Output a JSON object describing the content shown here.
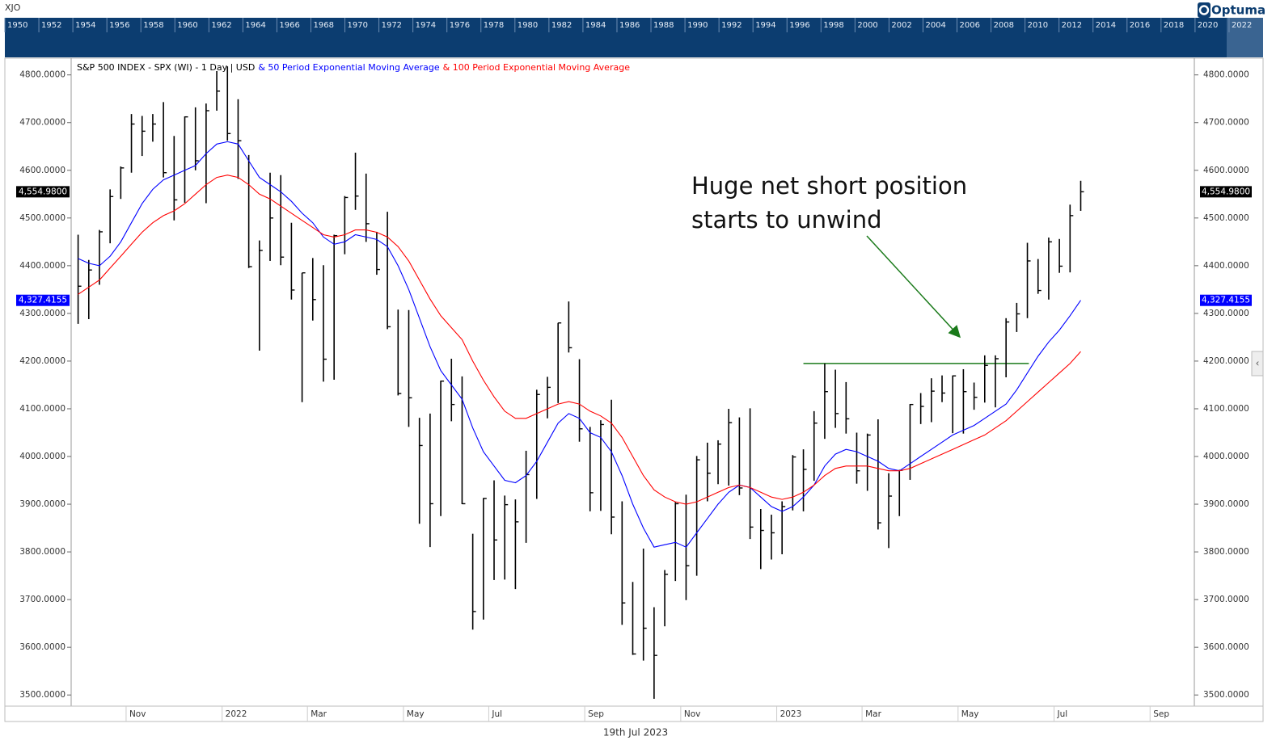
{
  "symbol": "XJO",
  "brand": "Optuma",
  "navigator": {
    "years": [
      1950,
      1952,
      1954,
      1956,
      1958,
      1960,
      1962,
      1964,
      1966,
      1968,
      1970,
      1972,
      1974,
      1976,
      1978,
      1980,
      1982,
      1984,
      1986,
      1988,
      1990,
      1992,
      1994,
      1996,
      1998,
      2000,
      2002,
      2004,
      2006,
      2008,
      2010,
      2012,
      2014,
      2016,
      2018,
      2020,
      2022
    ]
  },
  "chart_data": {
    "type": "ohlc",
    "categories": [
      null,
      null,
      null,
      null,
      null,
      "Nov",
      null,
      null,
      null,
      null,
      null,
      null,
      null,
      null,
      "2022",
      null,
      null,
      null,
      null,
      null,
      null,
      null,
      "Mar",
      null,
      null,
      null,
      null,
      null,
      null,
      null,
      null,
      "May",
      null,
      null,
      null,
      null,
      null,
      null,
      null,
      "Jul",
      null,
      null,
      null,
      null,
      null,
      null,
      null,
      null,
      "Sep",
      null,
      null,
      null,
      null,
      null,
      null,
      null,
      null,
      "Nov",
      null,
      null,
      null,
      null,
      null,
      null,
      null,
      null,
      "2023",
      null,
      null,
      null,
      null,
      null,
      null,
      null,
      "Mar",
      null,
      null,
      null,
      null,
      null,
      null,
      null,
      null,
      "May",
      null,
      null,
      null,
      null,
      null,
      null,
      null,
      null,
      "Jul",
      null,
      null,
      null,
      null,
      null,
      null,
      null,
      null,
      "Sep",
      null,
      null,
      null
    ],
    "series": [
      {
        "name": "S&P 500 INDEX - SPX (WI) - 1 Day | USD",
        "color": "#000000",
        "high": [
          4465,
          4412,
          4475,
          4560,
          4608,
          4718,
          4714,
          4718,
          4743,
          4672,
          4713,
          4732,
          4740,
          4808,
          4818,
          4749,
          4632,
          4453,
          4595,
          4590,
          4490,
          4385,
          4416,
          4401,
          4465,
          4546,
          4637,
          4593,
          4471,
          4513,
          4308,
          4307,
          4081,
          4090,
          4159,
          4205,
          4168,
          3838,
          3913,
          3950,
          3918,
          3910,
          4012,
          4140,
          4167,
          4280,
          4325,
          4204,
          4062,
          4076,
          4119,
          3906,
          3737,
          3807,
          3684,
          3762,
          3905,
          3920,
          4001,
          4029,
          4034,
          4100,
          4082,
          4101,
          3890,
          3878,
          3906,
          4003,
          4015,
          4095,
          4195,
          4182,
          4156,
          4050,
          4048,
          4078,
          3965,
          3972,
          4110,
          4133,
          4164,
          4170,
          4170,
          4183,
          4155,
          4212,
          4212,
          4290,
          4322,
          4448,
          4414,
          4459,
          4456,
          4528,
          4578,
          null,
          null,
          null,
          null,
          null,
          null,
          null,
          null,
          null,
          null
        ],
        "low": [
          4278,
          4288,
          4360,
          4447,
          4540,
          4595,
          4630,
          4660,
          4585,
          4495,
          4532,
          4600,
          4531,
          4725,
          4662,
          4582,
          4395,
          4222,
          4410,
          4401,
          4329,
          4114,
          4285,
          4157,
          4161,
          4424,
          4517,
          4450,
          4381,
          4267,
          4128,
          4062,
          3859,
          3810,
          3875,
          4074,
          3900,
          3637,
          3658,
          3741,
          3742,
          3722,
          3819,
          3911,
          4080,
          4112,
          4218,
          4031,
          3885,
          3886,
          3837,
          3647,
          3584,
          3572,
          3492,
          3644,
          3739,
          3699,
          3750,
          3906,
          3942,
          3939,
          3919,
          3827,
          3764,
          3784,
          3795,
          3887,
          3885,
          3949,
          4037,
          4060,
          4048,
          3943,
          3928,
          3847,
          3808,
          3875,
          3951,
          4068,
          4072,
          4114,
          4049,
          4048,
          4098,
          4113,
          4103,
          4166,
          4261,
          4290,
          4341,
          4329,
          4385,
          4386,
          4515,
          null,
          null,
          null,
          null,
          null,
          null,
          null,
          null,
          null,
          null
        ],
        "close": [
          4357,
          4391,
          4471,
          4545,
          4605,
          4697,
          4682,
          4697,
          4595,
          4538,
          4712,
          4620,
          4725,
          4766,
          4677,
          4662,
          4398,
          4432,
          4500,
          4418,
          4349,
          4385,
          4329,
          4204,
          4463,
          4543,
          4546,
          4488,
          4392,
          4272,
          4132,
          4123,
          4023,
          3901,
          4158,
          4109,
          3901,
          3675,
          3912,
          3825,
          3899,
          3863,
          3962,
          4130,
          4145,
          4280,
          4228,
          4058,
          3924,
          4067,
          3873,
          3693,
          3586,
          3640,
          3583,
          3753,
          3901,
          3771,
          3993,
          3965,
          4026,
          4071,
          3934,
          3852,
          3845,
          3840,
          3895,
          3999,
          3973,
          4070,
          4136,
          4090,
          4079,
          3970,
          4045,
          3861,
          3917,
          3971,
          4109,
          4105,
          4137,
          4133,
          4169,
          4136,
          4124,
          4191,
          4205,
          4282,
          4299,
          4410,
          4348,
          4450,
          4399,
          4505,
          4554.98,
          null,
          null,
          null,
          null,
          null,
          null,
          null,
          null,
          null,
          null
        ]
      },
      {
        "name": "& 50 Period Exponential Moving Average",
        "color": "#0000ff",
        "values": [
          4415,
          4405,
          4400,
          4420,
          4450,
          4490,
          4530,
          4560,
          4580,
          4590,
          4600,
          4610,
          4635,
          4655,
          4660,
          4655,
          4620,
          4585,
          4570,
          4555,
          4535,
          4510,
          4490,
          4460,
          4445,
          4450,
          4465,
          4460,
          4455,
          4440,
          4400,
          4350,
          4290,
          4230,
          4180,
          4150,
          4120,
          4060,
          4010,
          3980,
          3950,
          3945,
          3960,
          3990,
          4030,
          4070,
          4090,
          4080,
          4050,
          4040,
          4010,
          3960,
          3900,
          3850,
          3810,
          3815,
          3820,
          3810,
          3840,
          3870,
          3900,
          3925,
          3940,
          3935,
          3915,
          3895,
          3885,
          3895,
          3915,
          3940,
          3980,
          4005,
          4015,
          4010,
          4000,
          3990,
          3975,
          3970,
          3985,
          4000,
          4015,
          4030,
          4045,
          4055,
          4065,
          4080,
          4095,
          4110,
          4140,
          4175,
          4210,
          4240,
          4265,
          4295,
          4327.4155,
          null,
          null,
          null,
          null,
          null,
          null,
          null,
          null,
          null,
          null
        ]
      },
      {
        "name": "& 100 Period Exponential Moving Average",
        "color": "#ff0000",
        "values": [
          4340,
          4355,
          4370,
          4395,
          4420,
          4445,
          4470,
          4490,
          4505,
          4515,
          4530,
          4550,
          4570,
          4585,
          4590,
          4585,
          4570,
          4550,
          4540,
          4525,
          4510,
          4495,
          4480,
          4465,
          4460,
          4465,
          4475,
          4475,
          4470,
          4460,
          4440,
          4410,
          4370,
          4330,
          4295,
          4270,
          4245,
          4200,
          4160,
          4125,
          4095,
          4080,
          4080,
          4090,
          4100,
          4110,
          4115,
          4110,
          4095,
          4085,
          4070,
          4040,
          4000,
          3960,
          3930,
          3915,
          3905,
          3900,
          3905,
          3915,
          3925,
          3935,
          3940,
          3935,
          3925,
          3915,
          3910,
          3915,
          3925,
          3940,
          3960,
          3975,
          3980,
          3980,
          3980,
          3975,
          3970,
          3970,
          3975,
          3985,
          3995,
          4005,
          4015,
          4025,
          4035,
          4045,
          4060,
          4075,
          4095,
          4115,
          4135,
          4155,
          4175,
          4195,
          4220,
          null,
          null,
          null,
          null,
          null,
          null,
          null,
          null,
          null,
          null
        ]
      }
    ],
    "ylim": [
      3480,
      4830
    ],
    "yticks": [
      {
        "value": 3500,
        "label": "3500.0000"
      },
      {
        "value": 3600,
        "label": "3600.0000"
      },
      {
        "value": 3700,
        "label": "3700.0000"
      },
      {
        "value": 3800,
        "label": "3800.0000"
      },
      {
        "value": 3900,
        "label": "3900.0000"
      },
      {
        "value": 4000,
        "label": "4000.0000"
      },
      {
        "value": 4100,
        "label": "4100.0000"
      },
      {
        "value": 4200,
        "label": "4200.0000"
      },
      {
        "value": 4300,
        "label": "4300.0000"
      },
      {
        "value": 4400,
        "label": "4400.0000"
      },
      {
        "value": 4500,
        "label": "4500.0000"
      },
      {
        "value": 4600,
        "label": "4600.0000"
      },
      {
        "value": 4700,
        "label": "4700.0000"
      },
      {
        "value": 4800,
        "label": "4800.0000"
      }
    ],
    "price_labels": [
      {
        "value": 4554.98,
        "label": "4,554.9800",
        "color": "#000000"
      },
      {
        "value": 4327.4155,
        "label": "4,327.4155",
        "color": "#0000ff"
      }
    ],
    "level": {
      "value": 4195,
      "color": "#1a7a1a"
    },
    "annotation": [
      "Huge net short position",
      "starts to unwind"
    ],
    "date_label": "19th Jul 2023"
  }
}
